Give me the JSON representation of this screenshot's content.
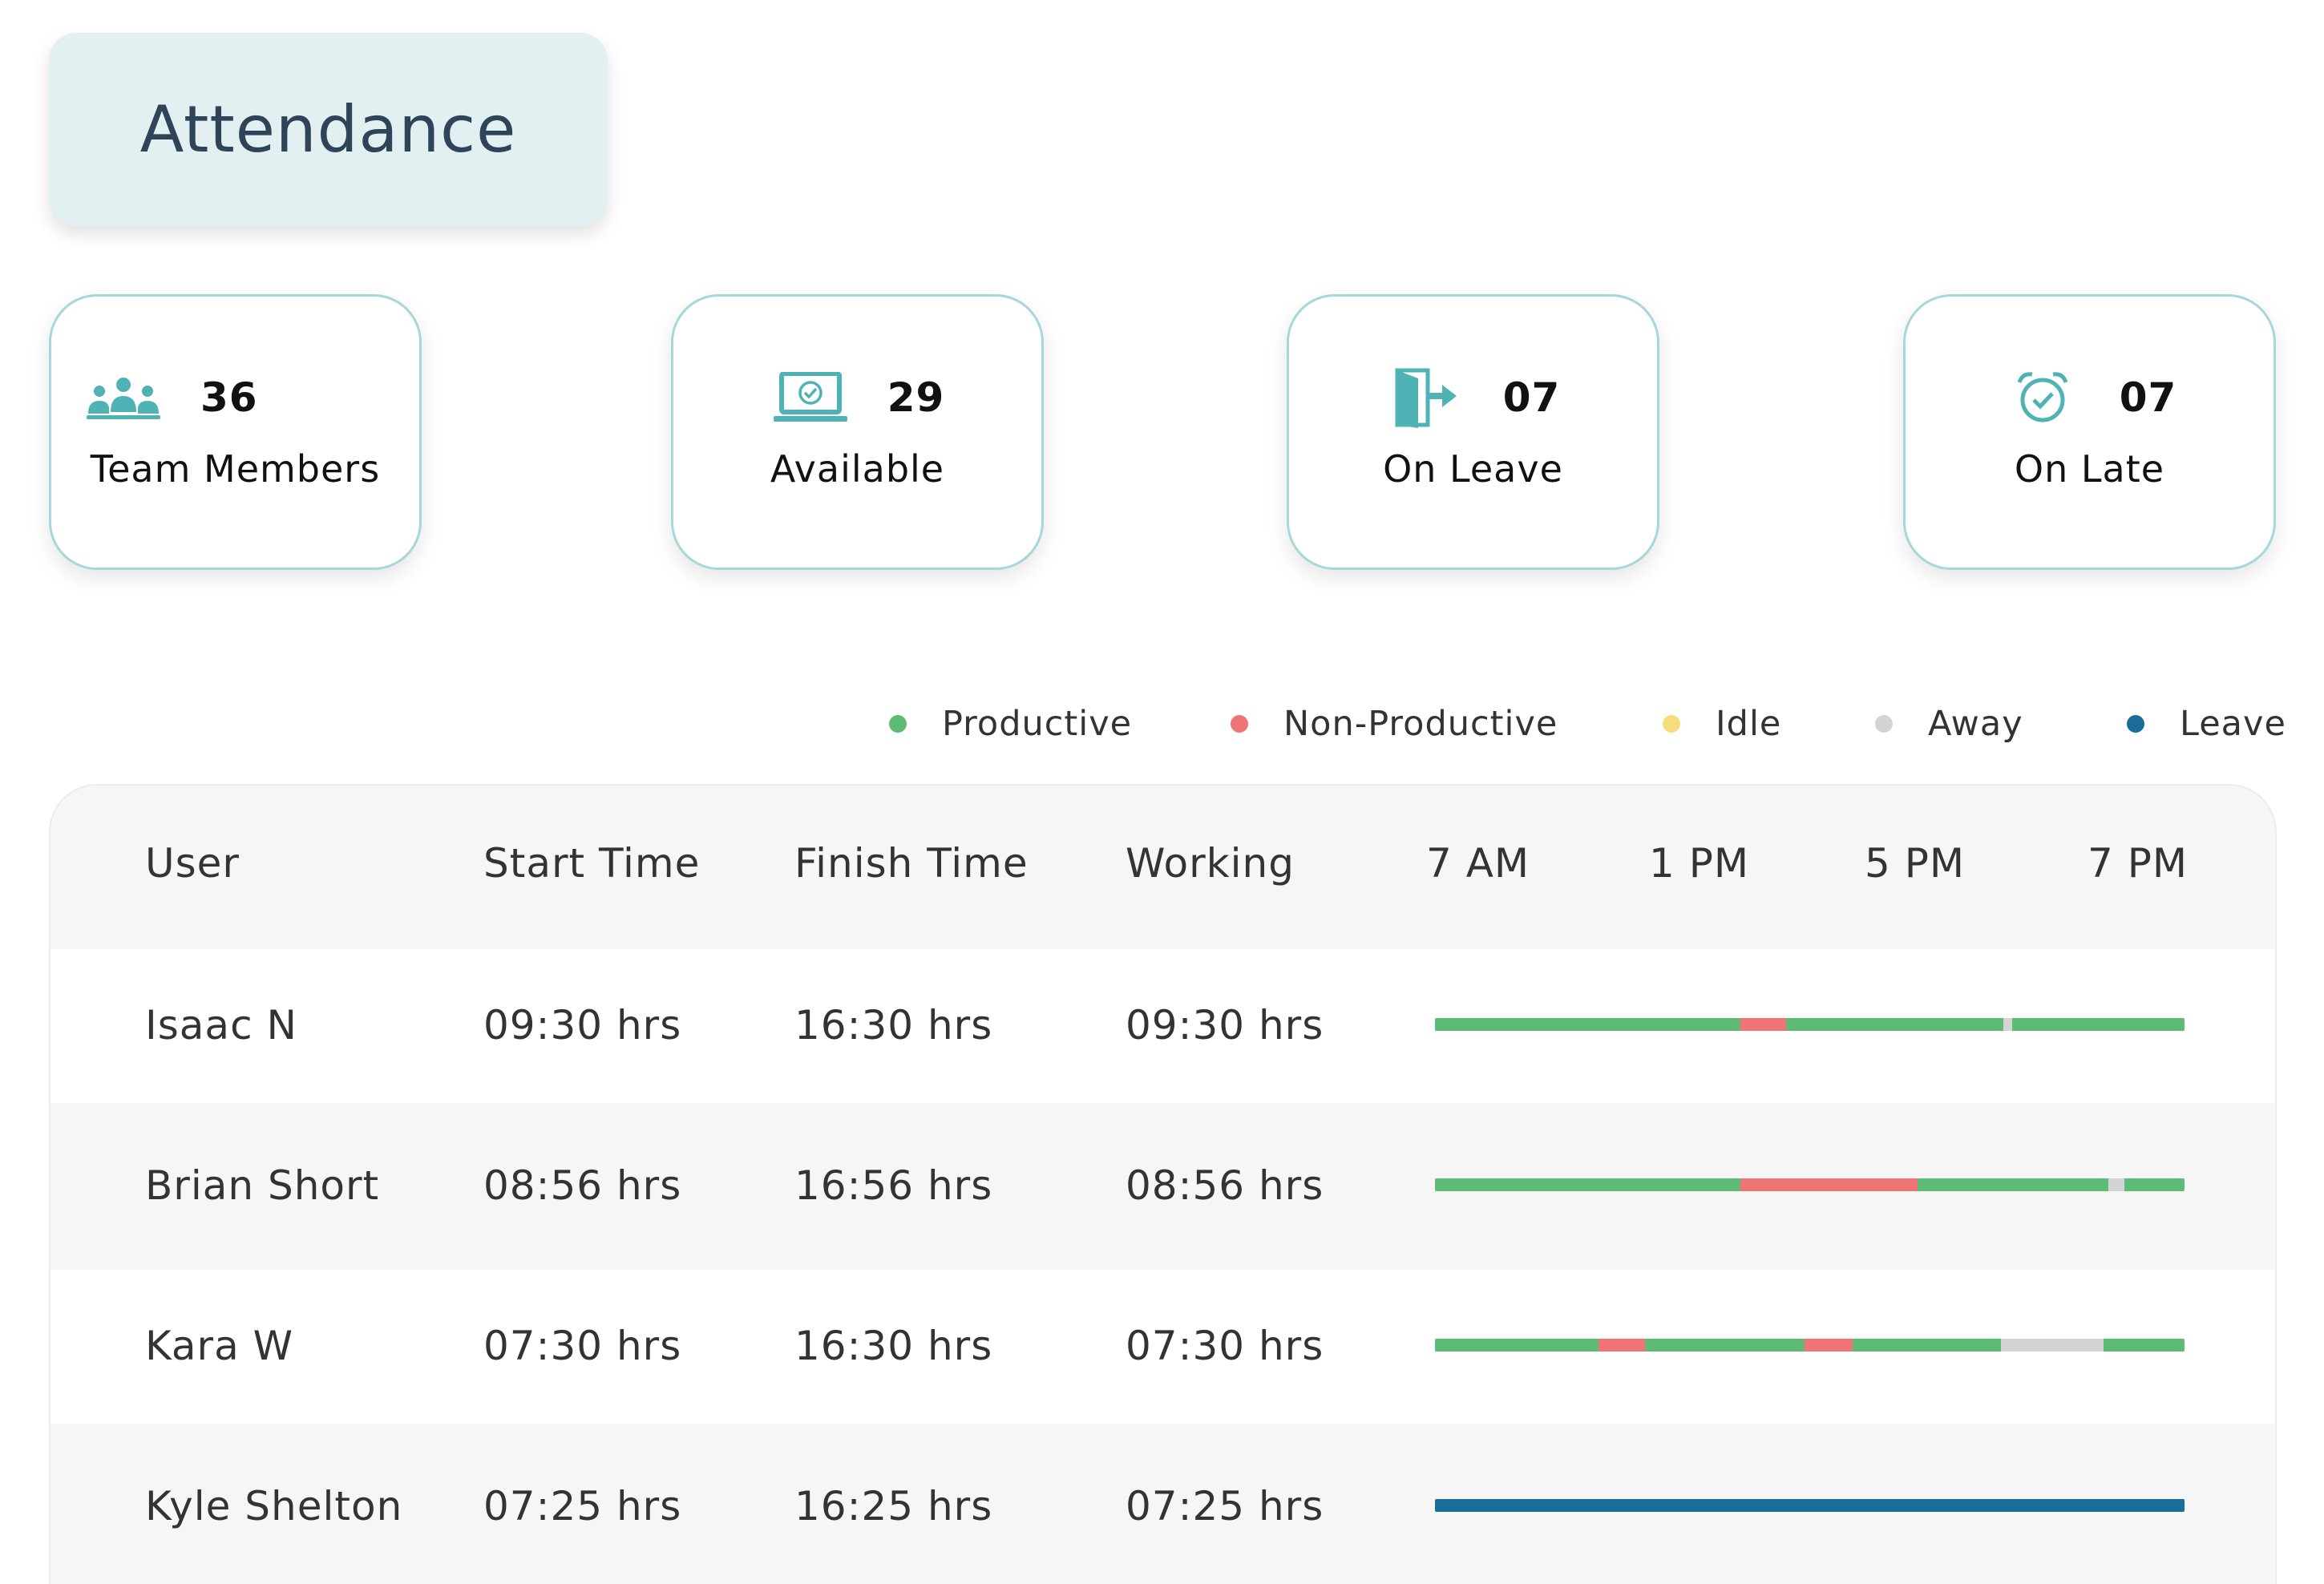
{
  "title": "Attendance",
  "colors": {
    "accent": "#4fb3b5",
    "productive": "#5dbb76",
    "non_productive": "#ef7474",
    "idle": "#f5dc7c",
    "away": "#d4d4d4",
    "leave": "#1b6e9a"
  },
  "stats": [
    {
      "icon": "team-icon",
      "value": "36",
      "label": "Team Members"
    },
    {
      "icon": "laptop-check-icon",
      "value": "29",
      "label": "Available"
    },
    {
      "icon": "door-exit-icon",
      "value": "07",
      "label": "On Leave"
    },
    {
      "icon": "alarm-clock-icon",
      "value": "07",
      "label": "On Late"
    }
  ],
  "legend": [
    {
      "label": "Productive",
      "color": "#5dbb76"
    },
    {
      "label": "Non-Productive",
      "color": "#ef7474"
    },
    {
      "label": "Idle",
      "color": "#f5dc7c"
    },
    {
      "label": "Away",
      "color": "#d4d4d4"
    },
    {
      "label": "Leave",
      "color": "#1b6e9a"
    }
  ],
  "table": {
    "headers": [
      "User",
      "Start Time",
      "Finish Time",
      "Working"
    ],
    "time_axis": [
      "7 AM",
      "1 PM",
      "5 PM",
      "7 PM"
    ],
    "rows": [
      {
        "user": "Isaac N",
        "start": "09:30 hrs",
        "finish": "16:30 hrs",
        "working": "09:30 hrs",
        "timeline": [
          {
            "status": "productive",
            "share": 0.408
          },
          {
            "status": "non_productive",
            "share": 0.06
          },
          {
            "status": "productive",
            "share": 0.29
          },
          {
            "status": "away",
            "share": 0.012
          },
          {
            "status": "productive",
            "share": 0.23
          }
        ]
      },
      {
        "user": "Brian Short",
        "start": "08:56 hrs",
        "finish": "16:56 hrs",
        "working": "08:56 hrs",
        "timeline": [
          {
            "status": "productive",
            "share": 0.408
          },
          {
            "status": "non_productive",
            "share": 0.236
          },
          {
            "status": "productive",
            "share": 0.254
          },
          {
            "status": "away",
            "share": 0.022
          },
          {
            "status": "productive",
            "share": 0.08
          }
        ]
      },
      {
        "user": "Kara W",
        "start": "07:30 hrs",
        "finish": "16:30 hrs",
        "working": "07:30 hrs",
        "timeline": [
          {
            "status": "productive",
            "share": 0.218
          },
          {
            "status": "non_productive",
            "share": 0.062
          },
          {
            "status": "productive",
            "share": 0.213
          },
          {
            "status": "non_productive",
            "share": 0.064
          },
          {
            "status": "productive",
            "share": 0.198
          },
          {
            "status": "away",
            "share": 0.137
          },
          {
            "status": "productive",
            "share": 0.108
          }
        ]
      },
      {
        "user": "Kyle Shelton",
        "start": "07:25 hrs",
        "finish": "16:25 hrs",
        "working": "07:25 hrs",
        "timeline": [
          {
            "status": "leave",
            "share": 1.0
          }
        ]
      }
    ]
  }
}
